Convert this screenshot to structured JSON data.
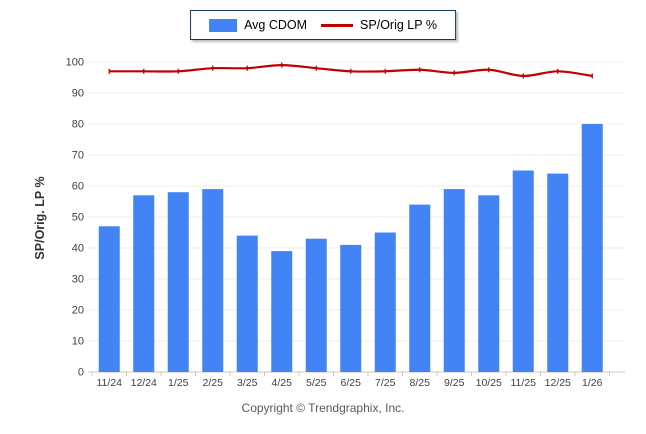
{
  "legend": {
    "items": [
      {
        "label": "Avg CDOM",
        "swatch": "bar-swatch",
        "color": "#4284F5"
      },
      {
        "label": "SP/Orig LP %",
        "swatch": "line-swatch",
        "color": "#C00000"
      }
    ],
    "border_color": "#17375E"
  },
  "footer": {
    "copyright": "Copyright © Trendgraphix, Inc."
  },
  "chart_data": {
    "type": "combo",
    "categories": [
      "11/24",
      "12/24",
      "1/25",
      "2/25",
      "3/25",
      "4/25",
      "5/25",
      "6/25",
      "7/25",
      "8/25",
      "9/25",
      "10/25",
      "11/25",
      "12/25",
      "1/26"
    ],
    "series": [
      {
        "name": "Avg CDOM",
        "type": "bar",
        "color": "#4284F5",
        "values": [
          47,
          57,
          58,
          59,
          44,
          39,
          43,
          41,
          45,
          54,
          59,
          57,
          65,
          64,
          80
        ]
      },
      {
        "name": "SP/Orig LP %",
        "type": "line",
        "color": "#C00000",
        "values": [
          97,
          97,
          97,
          98,
          98,
          99,
          98,
          97,
          97,
          97.5,
          96.5,
          97.5,
          95.5,
          97,
          95.5
        ]
      }
    ],
    "title": "",
    "xlabel": "",
    "ylabel": "SP/Orig. LP %",
    "ylim": [
      0,
      100
    ],
    "ytick_step": 10,
    "grid": true,
    "grid_color": "#ECECEC",
    "axis_color": "#C9C9C9",
    "tick_label_color": "#404040",
    "legend_position": "top"
  }
}
